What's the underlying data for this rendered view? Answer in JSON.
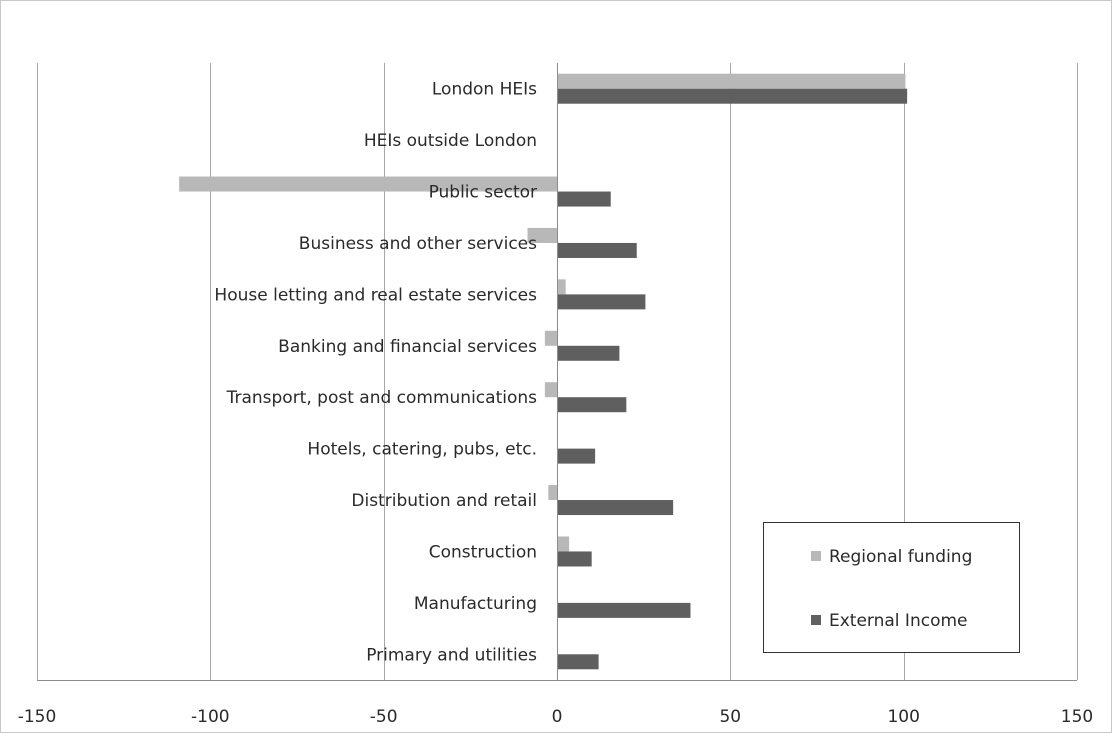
{
  "chart_data": {
    "type": "bar",
    "orientation": "horizontal",
    "categories": [
      "London HEIs",
      "HEIs outside London",
      "Public sector",
      "Business and other services",
      "House letting and real estate services",
      "Banking and financial services",
      "Transport, post and communications",
      "Hotels, catering, pubs, etc.",
      "Distribution and retail",
      "Construction",
      "Manufacturing",
      "Primary and utilities"
    ],
    "series": [
      {
        "name": "Regional funding",
        "color": "#b8b8b8",
        "values": [
          100.5,
          0,
          -109,
          -8.5,
          2.5,
          -3.5,
          -3.5,
          0,
          -2.5,
          3.5,
          0,
          0
        ]
      },
      {
        "name": "External Income",
        "color": "#5f5f5f",
        "values": [
          101,
          0,
          15.5,
          23,
          25.5,
          18,
          20,
          11,
          33.5,
          10,
          38.5,
          12
        ]
      }
    ],
    "xlim": [
      -150,
      150
    ],
    "xticks": [
      -150,
      -100,
      -50,
      0,
      50,
      100,
      150
    ],
    "xtick_labels": [
      "-150",
      "-100",
      "-50",
      "0",
      "50",
      "100",
      "150"
    ],
    "title": "",
    "xlabel": "",
    "ylabel": "",
    "grid": "vertical",
    "legend_position": "bottom-right"
  }
}
